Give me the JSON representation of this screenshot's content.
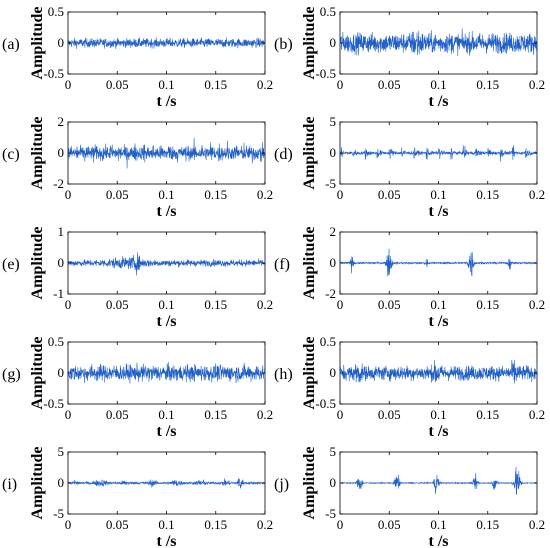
{
  "chart_data": [
    {
      "panel": "(a)",
      "type": "line",
      "xlabel": "t /s",
      "ylabel": "Amplitude",
      "xlim": [
        0,
        0.2
      ],
      "ylim": [
        -0.5,
        0.5
      ],
      "xticks": [
        "0",
        "0.05",
        "0.1",
        "0.15",
        "0.2"
      ],
      "yticks": [
        "-0.5",
        "0",
        "0.5"
      ],
      "series": [
        {
          "color": "#1f5fc8",
          "x": [
            0,
            0.05,
            0.1,
            0.15,
            0.2
          ],
          "y_env": [
            0.1,
            0.1,
            0.1,
            0.1,
            0.1
          ]
        }
      ]
    },
    {
      "panel": "(b)",
      "type": "line",
      "xlabel": "t /s",
      "ylabel": "Amplitude",
      "xlim": [
        0,
        0.2
      ],
      "ylim": [
        -0.5,
        0.5
      ],
      "xticks": [
        "0",
        "0.05",
        "0.1",
        "0.15",
        "0.2"
      ],
      "yticks": [
        "-0.5",
        "0",
        "0.5"
      ],
      "series": [
        {
          "color": "#1f5fc8",
          "x": [
            0,
            0.05,
            0.1,
            0.15,
            0.2
          ],
          "y_env": [
            0.3,
            0.3,
            0.35,
            0.3,
            0.3
          ]
        }
      ]
    },
    {
      "panel": "(c)",
      "type": "line",
      "xlabel": "t /s",
      "ylabel": "Amplitude",
      "xlim": [
        0,
        0.2
      ],
      "ylim": [
        -2,
        2
      ],
      "xticks": [
        "0",
        "0.05",
        "0.1",
        "0.15",
        "0.2"
      ],
      "yticks": [
        "-2",
        "0",
        "2"
      ],
      "series": [
        {
          "color": "#1f5fc8",
          "x": [
            0,
            0.05,
            0.1,
            0.15,
            0.2
          ],
          "y_env": [
            0.6,
            0.6,
            0.7,
            0.6,
            0.6
          ]
        }
      ]
    },
    {
      "panel": "(d)",
      "type": "line",
      "xlabel": "t /s",
      "ylabel": "Amplitude",
      "xlim": [
        0,
        0.2
      ],
      "ylim": [
        -5,
        5
      ],
      "xticks": [
        "0",
        "0.05",
        "0.1",
        "0.15",
        "0.2"
      ],
      "yticks": [
        "-5",
        "0",
        "5"
      ],
      "series": [
        {
          "color": "#1f5fc8",
          "x": [
            0,
            0.05,
            0.1,
            0.15,
            0.2
          ],
          "y_env": [
            1.4,
            1.5,
            1.5,
            1.5,
            1.4
          ]
        }
      ]
    },
    {
      "panel": "(e)",
      "type": "line",
      "xlabel": "t /s",
      "ylabel": "Amplitude",
      "xlim": [
        0,
        0.2
      ],
      "ylim": [
        -1,
        1
      ],
      "xticks": [
        "0",
        "0.05",
        "0.1",
        "0.15",
        "0.2"
      ],
      "yticks": [
        "-1",
        "0",
        "1"
      ],
      "series": [
        {
          "color": "#1f5fc8",
          "x": [
            0,
            0.05,
            0.1,
            0.15,
            0.2
          ],
          "y_env": [
            0.2,
            0.3,
            0.25,
            0.2,
            0.2
          ]
        }
      ]
    },
    {
      "panel": "(f)",
      "type": "line",
      "xlabel": "t /s",
      "ylabel": "Amplitude",
      "xlim": [
        0,
        0.2
      ],
      "ylim": [
        -2,
        2
      ],
      "xticks": [
        "0",
        "0.05",
        "0.1",
        "0.15",
        "0.2"
      ],
      "yticks": [
        "-2",
        "0",
        "2"
      ],
      "series": [
        {
          "color": "#1f5fc8",
          "x": [
            0,
            0.05,
            0.1,
            0.15,
            0.2
          ],
          "y_env": [
            0.1,
            1.2,
            0.2,
            1.2,
            0.3
          ]
        }
      ]
    },
    {
      "panel": "(g)",
      "type": "line",
      "xlabel": "t /s",
      "ylabel": "Amplitude",
      "xlim": [
        0,
        0.2
      ],
      "ylim": [
        -0.5,
        0.5
      ],
      "xticks": [
        "0",
        "0.05",
        "0.1",
        "0.15",
        "0.2"
      ],
      "yticks": [
        "-0.5",
        "0",
        "0.5"
      ],
      "series": [
        {
          "color": "#1f5fc8",
          "x": [
            0,
            0.05,
            0.1,
            0.15,
            0.2
          ],
          "y_env": [
            0.2,
            0.2,
            0.2,
            0.2,
            0.2
          ]
        }
      ]
    },
    {
      "panel": "(h)",
      "type": "line",
      "xlabel": "t /s",
      "ylabel": "Amplitude",
      "xlim": [
        0,
        0.2
      ],
      "ylim": [
        -0.5,
        0.5
      ],
      "xticks": [
        "0",
        "0.05",
        "0.1",
        "0.15",
        "0.2"
      ],
      "yticks": [
        "-0.5",
        "0",
        "0.5"
      ],
      "series": [
        {
          "color": "#1f5fc8",
          "x": [
            0,
            0.05,
            0.1,
            0.15,
            0.2
          ],
          "y_env": [
            0.2,
            0.3,
            0.3,
            0.3,
            0.2
          ]
        }
      ]
    },
    {
      "panel": "(i)",
      "type": "line",
      "xlabel": "t /s",
      "ylabel": "Amplitude",
      "xlim": [
        0,
        0.2
      ],
      "ylim": [
        -5,
        5
      ],
      "xticks": [
        "0",
        "0.05",
        "0.1",
        "0.15",
        "0.2"
      ],
      "yticks": [
        "-5",
        "0",
        "5"
      ],
      "series": [
        {
          "color": "#1f5fc8",
          "x": [
            0,
            0.05,
            0.1,
            0.15,
            0.2
          ],
          "y_env": [
            1.0,
            1.2,
            1.2,
            1.5,
            1.0
          ]
        }
      ]
    },
    {
      "panel": "(j)",
      "type": "line",
      "xlabel": "t /s",
      "ylabel": "Amplitude",
      "xlim": [
        0,
        0.2
      ],
      "ylim": [
        -5,
        5
      ],
      "xticks": [
        "0",
        "0.05",
        "0.1",
        "0.15",
        "0.2"
      ],
      "yticks": [
        "-5",
        "0",
        "5"
      ],
      "series": [
        {
          "color": "#1f5fc8",
          "x": [
            0,
            0.05,
            0.1,
            0.15,
            0.2
          ],
          "y_env": [
            0.3,
            2.5,
            2.5,
            2.5,
            3.5
          ]
        }
      ]
    }
  ]
}
